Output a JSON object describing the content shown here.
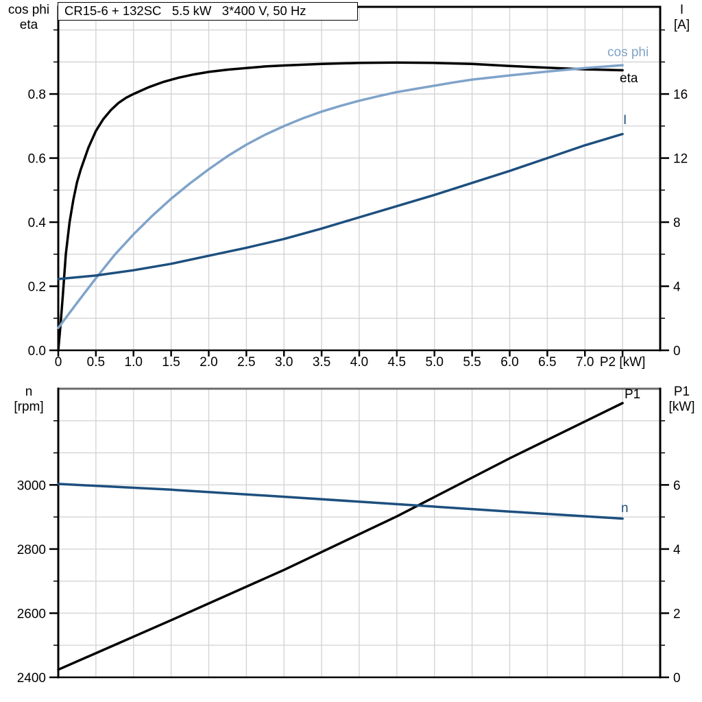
{
  "page": {
    "background": "#ffffff"
  },
  "title_box": {
    "text": "CR15-6 + 132SC   5.5 kW   3*400 V, 50 Hz"
  },
  "axis_corner_labels": {
    "top_left_line1": "cos phi",
    "top_left_line2": "eta",
    "top_right_line1": "I",
    "top_right_line2": "[A]",
    "bottom_left_line1": "n",
    "bottom_left_line2": "[rpm]",
    "bottom_right_line1": "P1",
    "bottom_right_line2": "[kW]"
  },
  "colors": {
    "eta_curve": "#000000",
    "cos_phi_curve": "#7fa3c9",
    "current_curve": "#1d4f7e",
    "p1_curve": "#000000",
    "n_curve": "#1d4f7e",
    "grid": "#d4d4d8",
    "frame": "#000000",
    "bottom_chart_top_frame": "#6b6b6b",
    "text": "#000000"
  },
  "chart_data": [
    {
      "type": "line",
      "title": "CR15-6 + 132SC 5.5 kW 3*400 V, 50 Hz",
      "xlabel": "P2 [kW]",
      "legend_position": "inline-right",
      "grid": true,
      "h_grid_axis": "left",
      "x_axis": {
        "min": 0,
        "max": 8,
        "grid_step": 0.5,
        "tick_positions": [
          0,
          0.5,
          1.0,
          1.5,
          2.0,
          2.5,
          3.0,
          3.5,
          4.0,
          4.5,
          5.0,
          5.5,
          6.0,
          6.5,
          7.0,
          7.5
        ],
        "tick_labels": [
          "0",
          "0.5",
          "1.0",
          "1.5",
          "2.0",
          "2.5",
          "3.0",
          "3.5",
          "4.0",
          "4.5",
          "5.0",
          "5.5",
          "6.0",
          "6.5",
          "7.0",
          "P2 [kW]"
        ]
      },
      "y_left": {
        "title": "cos phi / eta",
        "min": 0,
        "max": 1.072,
        "grid_step": 0.1,
        "major_ticks": [
          0,
          0.2,
          0.4,
          0.6,
          0.8
        ],
        "major_labels": [
          "0.0",
          "0.2",
          "0.4",
          "0.6",
          "0.8"
        ],
        "minor_ticks": [
          0.1,
          0.3,
          0.5,
          0.7,
          0.9,
          1.0
        ]
      },
      "y_right": {
        "title": "I [A]",
        "min": 0,
        "max": 21.44,
        "major_ticks": [
          0,
          4,
          8,
          12,
          16
        ],
        "major_labels": [
          "0",
          "4",
          "8",
          "12",
          "16"
        ],
        "minor_ticks": [
          2,
          6,
          10,
          14,
          18,
          20
        ]
      },
      "series": [
        {
          "name": "eta",
          "label": "eta",
          "axis": "left",
          "color_key": "eta_curve",
          "points": [
            [
              0,
              0
            ],
            [
              0.03,
              0.08
            ],
            [
              0.06,
              0.17
            ],
            [
              0.1,
              0.3
            ],
            [
              0.15,
              0.4
            ],
            [
              0.2,
              0.47
            ],
            [
              0.25,
              0.525
            ],
            [
              0.3,
              0.565
            ],
            [
              0.4,
              0.632
            ],
            [
              0.5,
              0.685
            ],
            [
              0.6,
              0.722
            ],
            [
              0.7,
              0.75
            ],
            [
              0.8,
              0.772
            ],
            [
              0.9,
              0.788
            ],
            [
              1.0,
              0.8
            ],
            [
              1.2,
              0.821
            ],
            [
              1.4,
              0.838
            ],
            [
              1.6,
              0.851
            ],
            [
              1.8,
              0.861
            ],
            [
              2.0,
              0.869
            ],
            [
              2.25,
              0.876
            ],
            [
              2.5,
              0.881
            ],
            [
              2.75,
              0.886
            ],
            [
              3.0,
              0.889
            ],
            [
              3.5,
              0.894
            ],
            [
              4.0,
              0.897
            ],
            [
              4.5,
              0.898
            ],
            [
              5.0,
              0.897
            ],
            [
              5.5,
              0.894
            ],
            [
              6.0,
              0.8875
            ],
            [
              6.5,
              0.882
            ],
            [
              7.0,
              0.877
            ],
            [
              7.5,
              0.874
            ]
          ]
        },
        {
          "name": "cos phi",
          "label": "cos phi",
          "axis": "left",
          "color_key": "cos_phi_curve",
          "points": [
            [
              0,
              0.07
            ],
            [
              0.25,
              0.148
            ],
            [
              0.5,
              0.225
            ],
            [
              0.75,
              0.298
            ],
            [
              1.0,
              0.362
            ],
            [
              1.25,
              0.42
            ],
            [
              1.5,
              0.473
            ],
            [
              1.75,
              0.521
            ],
            [
              2.0,
              0.565
            ],
            [
              2.25,
              0.606
            ],
            [
              2.5,
              0.642
            ],
            [
              2.75,
              0.673
            ],
            [
              3.0,
              0.7
            ],
            [
              3.25,
              0.724
            ],
            [
              3.5,
              0.745
            ],
            [
              3.75,
              0.763
            ],
            [
              4.0,
              0.779
            ],
            [
              4.25,
              0.793
            ],
            [
              4.5,
              0.806
            ],
            [
              4.75,
              0.816
            ],
            [
              5.0,
              0.826
            ],
            [
              5.25,
              0.836
            ],
            [
              5.5,
              0.845
            ],
            [
              6.0,
              0.858
            ],
            [
              6.5,
              0.87
            ],
            [
              7.0,
              0.881
            ],
            [
              7.5,
              0.89
            ]
          ]
        },
        {
          "name": "I",
          "label": "I",
          "axis": "right",
          "color_key": "current_curve",
          "points": [
            [
              0,
              4.45
            ],
            [
              0.5,
              4.67
            ],
            [
              1.0,
              5.0
            ],
            [
              1.5,
              5.4
            ],
            [
              2.0,
              5.9
            ],
            [
              2.5,
              6.4
            ],
            [
              3.0,
              6.95
            ],
            [
              3.5,
              7.6
            ],
            [
              4.0,
              8.3
            ],
            [
              4.5,
              9.0
            ],
            [
              5.0,
              9.7
            ],
            [
              5.5,
              10.45
            ],
            [
              6.0,
              11.2
            ],
            [
              6.5,
              12.0
            ],
            [
              7.0,
              12.8
            ],
            [
              7.5,
              13.5
            ]
          ]
        }
      ]
    },
    {
      "type": "line",
      "title": "",
      "xlabel": "",
      "grid": true,
      "h_grid_axis": "right",
      "x_axis": {
        "min": 0,
        "max": 8,
        "grid_step": 0.5,
        "tick_positions": [],
        "tick_labels": []
      },
      "y_left": {
        "title": "n [rpm]",
        "min": 2400,
        "max": 3300,
        "major_ticks": [
          2400,
          2600,
          2800,
          3000
        ],
        "major_labels": [
          "2400",
          "2600",
          "2800",
          "3000"
        ],
        "minor_ticks": [
          2500,
          2700,
          2900,
          3100,
          3200
        ]
      },
      "y_right": {
        "title": "P1 [kW]",
        "min": 0,
        "max": 9,
        "grid_step": 1,
        "major_ticks": [
          0,
          2,
          4,
          6
        ],
        "major_labels": [
          "0",
          "2",
          "4",
          "6"
        ],
        "minor_ticks": [
          1,
          3,
          5,
          7,
          8
        ]
      },
      "series": [
        {
          "name": "P1",
          "label": "P1",
          "axis": "right",
          "color_key": "p1_curve",
          "points": [
            [
              0,
              0.24
            ],
            [
              1.5,
              1.78
            ],
            [
              3.0,
              3.35
            ],
            [
              4.5,
              5.02
            ],
            [
              6.0,
              6.83
            ],
            [
              7.5,
              8.55
            ]
          ]
        },
        {
          "name": "n",
          "label": "n",
          "axis": "left",
          "color_key": "n_curve",
          "points": [
            [
              0,
              3003
            ],
            [
              1.5,
              2985
            ],
            [
              3.0,
              2963
            ],
            [
              4.5,
              2940
            ],
            [
              6.0,
              2917
            ],
            [
              7.5,
              2895
            ]
          ]
        }
      ]
    }
  ]
}
